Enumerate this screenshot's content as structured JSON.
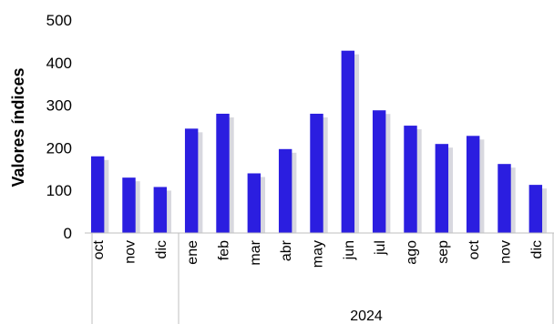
{
  "chart_data": {
    "type": "bar",
    "ylabel": "Valores índices",
    "xlabel": "",
    "ylim": [
      0,
      500
    ],
    "yticks": [
      0,
      100,
      200,
      300,
      400,
      500
    ],
    "grid": false,
    "legend": "none",
    "categories": [
      "oct",
      "nov",
      "dic",
      "ene",
      "feb",
      "mar",
      "abr",
      "may",
      "jun",
      "jul",
      "ago",
      "sep",
      "oct",
      "nov",
      "dic"
    ],
    "groups": [
      {
        "label": "",
        "count": 3
      },
      {
        "label": "2024",
        "count": 12
      }
    ],
    "series": [
      {
        "values": [
          180,
          130,
          108,
          245,
          280,
          140,
          197,
          280,
          428,
          288,
          252,
          209,
          228,
          162,
          113
        ],
        "color": "#2b1ee0"
      }
    ]
  }
}
